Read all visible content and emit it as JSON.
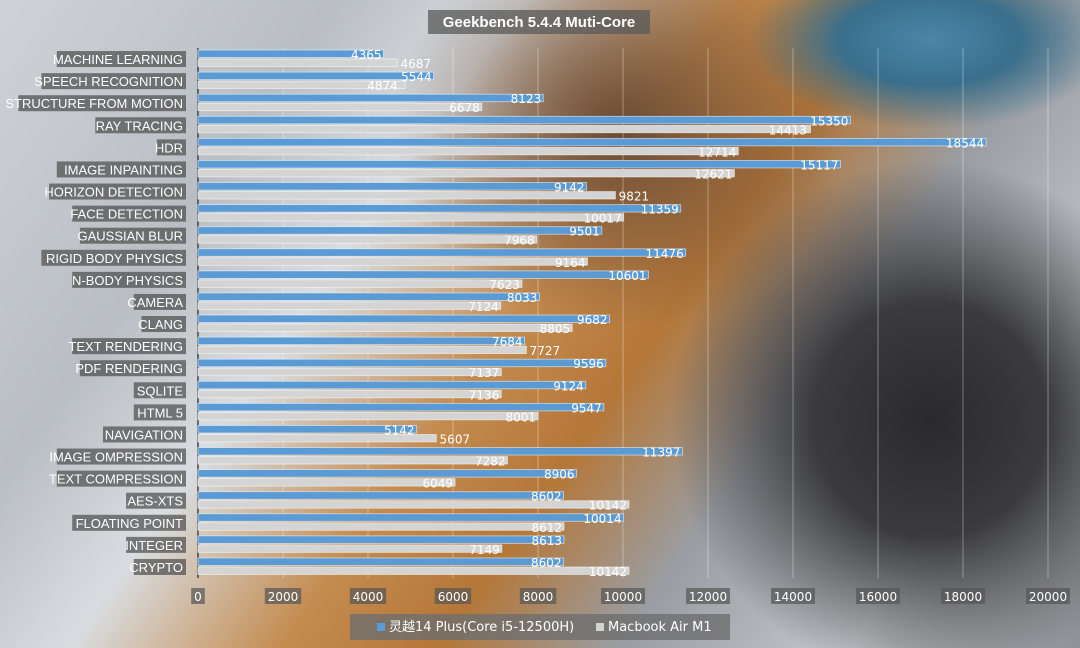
{
  "chart_data": {
    "type": "bar",
    "orientation": "horizontal",
    "title": "Geekbench 5.4.4 Muti-Core",
    "categories": [
      "MACHINE LEARNING",
      "SPEECH RECOGNITION",
      "STRUCTURE FROM MOTION",
      "RAY TRACING",
      "HDR",
      "IMAGE INPAINTING",
      "HORIZON DETECTION",
      "FACE DETECTION",
      "GAUSSIAN BLUR",
      "RIGID BODY PHYSICS",
      "N-BODY PHYSICS",
      "CAMERA",
      "CLANG",
      "TEXT RENDERING",
      "PDF RENDERING",
      "SQLITE",
      "HTML 5",
      "NAVIGATION",
      "IMAGE OMPRESSION",
      "TEXT COMPRESSION",
      "AES-XTS",
      "FLOATING POINT",
      "INTEGER",
      "CRYPTO"
    ],
    "series": [
      {
        "name": "灵越14 Plus(Core i5-12500H)",
        "color": "#5b9bd5",
        "values": [
          4365,
          5544,
          8123,
          15350,
          18544,
          15117,
          9142,
          11359,
          9501,
          11476,
          10601,
          8033,
          9682,
          7684,
          9596,
          9124,
          9547,
          5142,
          11397,
          8906,
          8602,
          10014,
          8613,
          8602
        ]
      },
      {
        "name": "Macbook Air M1",
        "color": "#d4d4d4",
        "values": [
          4687,
          4874,
          6678,
          14413,
          12714,
          12621,
          9821,
          10017,
          7968,
          9164,
          7623,
          7124,
          8805,
          7727,
          7137,
          7136,
          8001,
          5607,
          7282,
          6049,
          10142,
          8612,
          7149,
          10142
        ]
      }
    ],
    "xlim": [
      0,
      20000
    ],
    "xticks": [
      "0",
      "2000",
      "4000",
      "6000",
      "8000",
      "10000",
      "12000",
      "14000",
      "16000",
      "18000",
      "20000"
    ],
    "grid": true,
    "data_labels": true,
    "legend": "bottom"
  }
}
